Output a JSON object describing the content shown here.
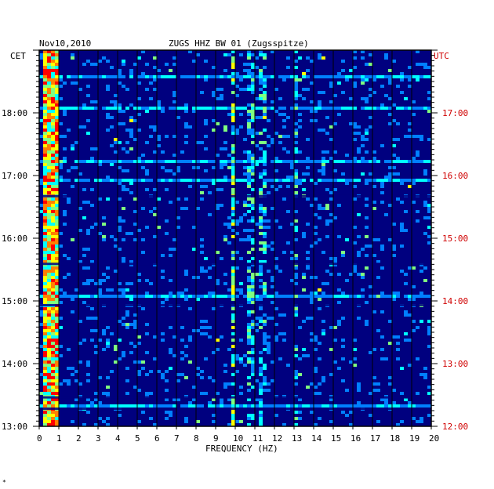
{
  "chart_data": {
    "type": "heatmap",
    "date": "Nov10,2010",
    "station": "ZUGS HHZ BW 01 (Zugsspitze)",
    "left_axis_label": "CET",
    "right_axis_label": "UTC",
    "xlabel": "FREQUENCY (HZ)",
    "xlim": [
      0,
      20
    ],
    "x_ticks": [
      "0",
      "1",
      "2",
      "3",
      "4",
      "5",
      "6",
      "7",
      "8",
      "9",
      "10",
      "11",
      "12",
      "13",
      "14",
      "15",
      "16",
      "17",
      "18",
      "19",
      "20"
    ],
    "cet_ticks": [
      "13:00",
      "14:00",
      "15:00",
      "16:00",
      "17:00",
      "18:00"
    ],
    "utc_ticks": [
      "12:00",
      "13:00",
      "14:00",
      "15:00",
      "16:00",
      "17:00"
    ],
    "ylim_cet": [
      "13:00",
      "19:00"
    ],
    "grid": true,
    "colors": {
      "background": "#00007f",
      "grid": "#000000",
      "right_axis": "#d00000",
      "colormap": [
        "#00007f",
        "#0000ff",
        "#0080ff",
        "#00ffff",
        "#80ff80",
        "#ffff00",
        "#ff8000",
        "#ff0000"
      ]
    },
    "features": [
      {
        "desc": "low frequency band",
        "f_from": 0.1,
        "f_to": 0.8,
        "intensity": "high"
      },
      {
        "desc": "line",
        "f": 9.8,
        "intensity": "medium"
      },
      {
        "desc": "line",
        "f": 10.7,
        "intensity": "low"
      },
      {
        "desc": "line",
        "f": 11.3,
        "intensity": "low"
      },
      {
        "desc": "line",
        "f": 13.0,
        "intensity": "low"
      }
    ]
  },
  "footer_mark": "*"
}
